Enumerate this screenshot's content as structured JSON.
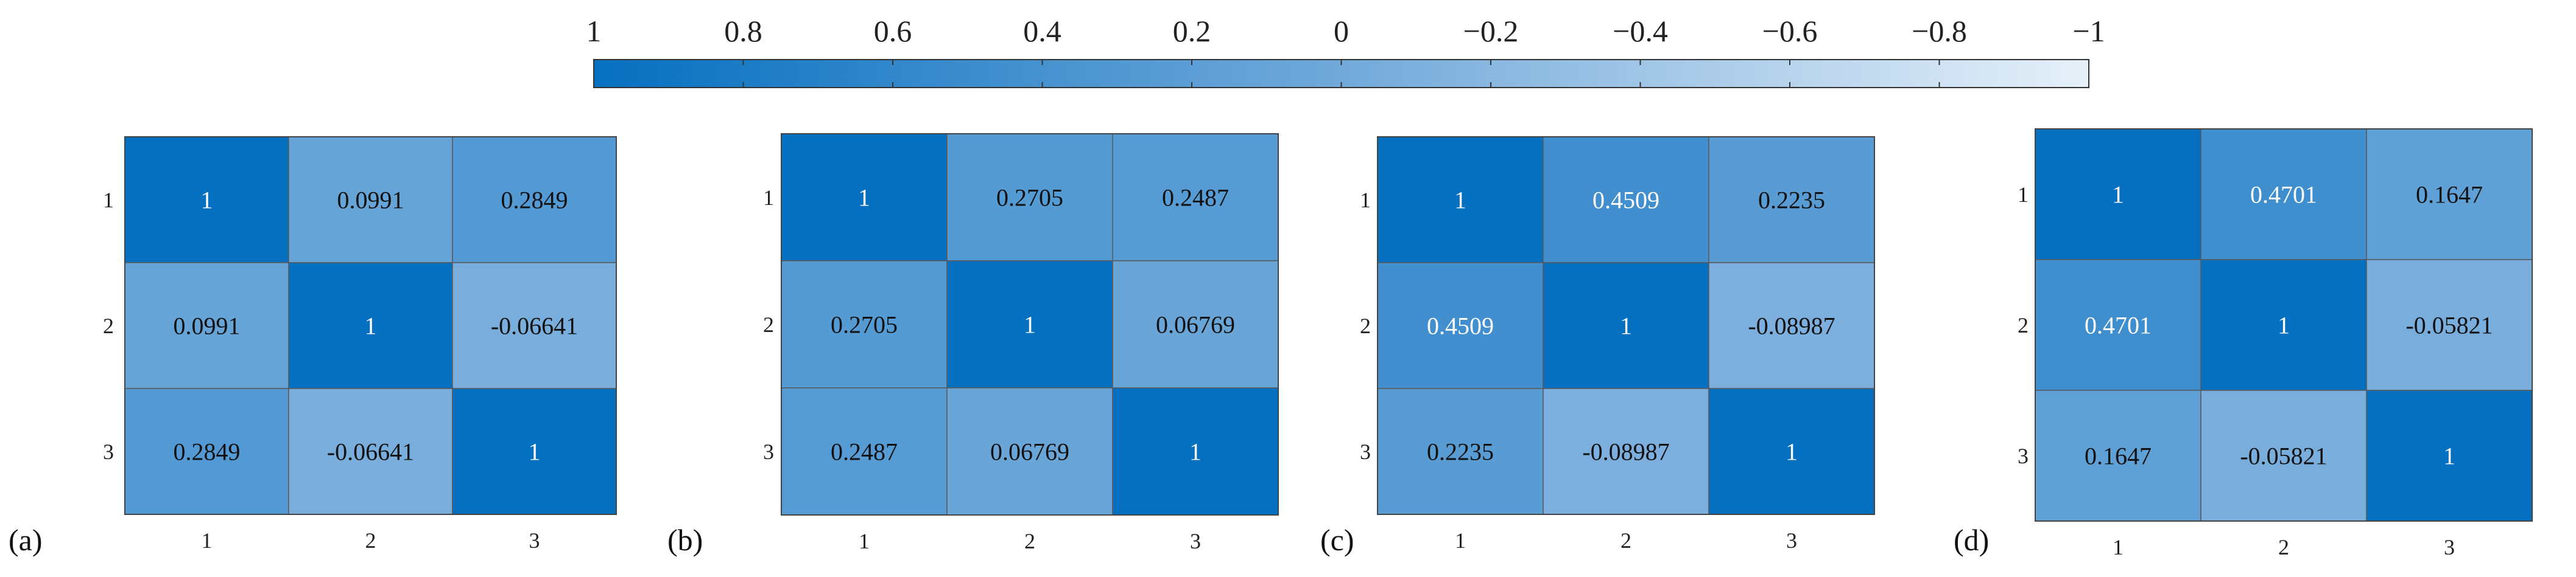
{
  "colorbar": {
    "tick_labels": [
      "1",
      "0.8",
      "0.6",
      "0.4",
      "0.2",
      "0",
      "−0.2",
      "−0.4",
      "−0.6",
      "−0.8",
      "−1"
    ],
    "range": [
      1,
      -1
    ],
    "colors": {
      "at_1": "#0670C0",
      "at_0": "#71A9DA",
      "at_minus_1": "#E6F0F9"
    }
  },
  "chart_data": [
    {
      "type": "heatmap",
      "panel_label": "(a)",
      "x_categories": [
        "1",
        "2",
        "3"
      ],
      "y_categories": [
        "1",
        "2",
        "3"
      ],
      "values": [
        [
          1,
          0.0991,
          0.2849
        ],
        [
          0.0991,
          1,
          -0.06641
        ],
        [
          0.2849,
          -0.06641,
          1
        ]
      ],
      "labels": [
        [
          "1",
          "0.0991",
          "0.2849"
        ],
        [
          "0.0991",
          "1",
          "-0.06641"
        ],
        [
          "0.2849",
          "-0.06641",
          "1"
        ]
      ]
    },
    {
      "type": "heatmap",
      "panel_label": "(b)",
      "x_categories": [
        "1",
        "2",
        "3"
      ],
      "y_categories": [
        "1",
        "2",
        "3"
      ],
      "values": [
        [
          1,
          0.2705,
          0.2487
        ],
        [
          0.2705,
          1,
          0.06769
        ],
        [
          0.2487,
          0.06769,
          1
        ]
      ],
      "labels": [
        [
          "1",
          "0.2705",
          "0.2487"
        ],
        [
          "0.2705",
          "1",
          "0.06769"
        ],
        [
          "0.2487",
          "0.06769",
          "1"
        ]
      ]
    },
    {
      "type": "heatmap",
      "panel_label": "(c)",
      "x_categories": [
        "1",
        "2",
        "3"
      ],
      "y_categories": [
        "1",
        "2",
        "3"
      ],
      "values": [
        [
          1,
          0.4509,
          0.2235
        ],
        [
          0.4509,
          1,
          -0.08987
        ],
        [
          0.2235,
          -0.08987,
          1
        ]
      ],
      "labels": [
        [
          "1",
          "0.4509",
          "0.2235"
        ],
        [
          "0.4509",
          "1",
          "-0.08987"
        ],
        [
          "0.2235",
          "-0.08987",
          "1"
        ]
      ]
    },
    {
      "type": "heatmap",
      "panel_label": "(d)",
      "x_categories": [
        "1",
        "2",
        "3"
      ],
      "y_categories": [
        "1",
        "2",
        "3"
      ],
      "values": [
        [
          1,
          0.4701,
          0.1647
        ],
        [
          0.4701,
          1,
          -0.05821
        ],
        [
          0.1647,
          -0.05821,
          1
        ]
      ],
      "labels": [
        [
          "1",
          "0.4701",
          "0.1647"
        ],
        [
          "0.4701",
          "1",
          "-0.05821"
        ],
        [
          "0.1647",
          "-0.05821",
          "1"
        ]
      ]
    }
  ]
}
